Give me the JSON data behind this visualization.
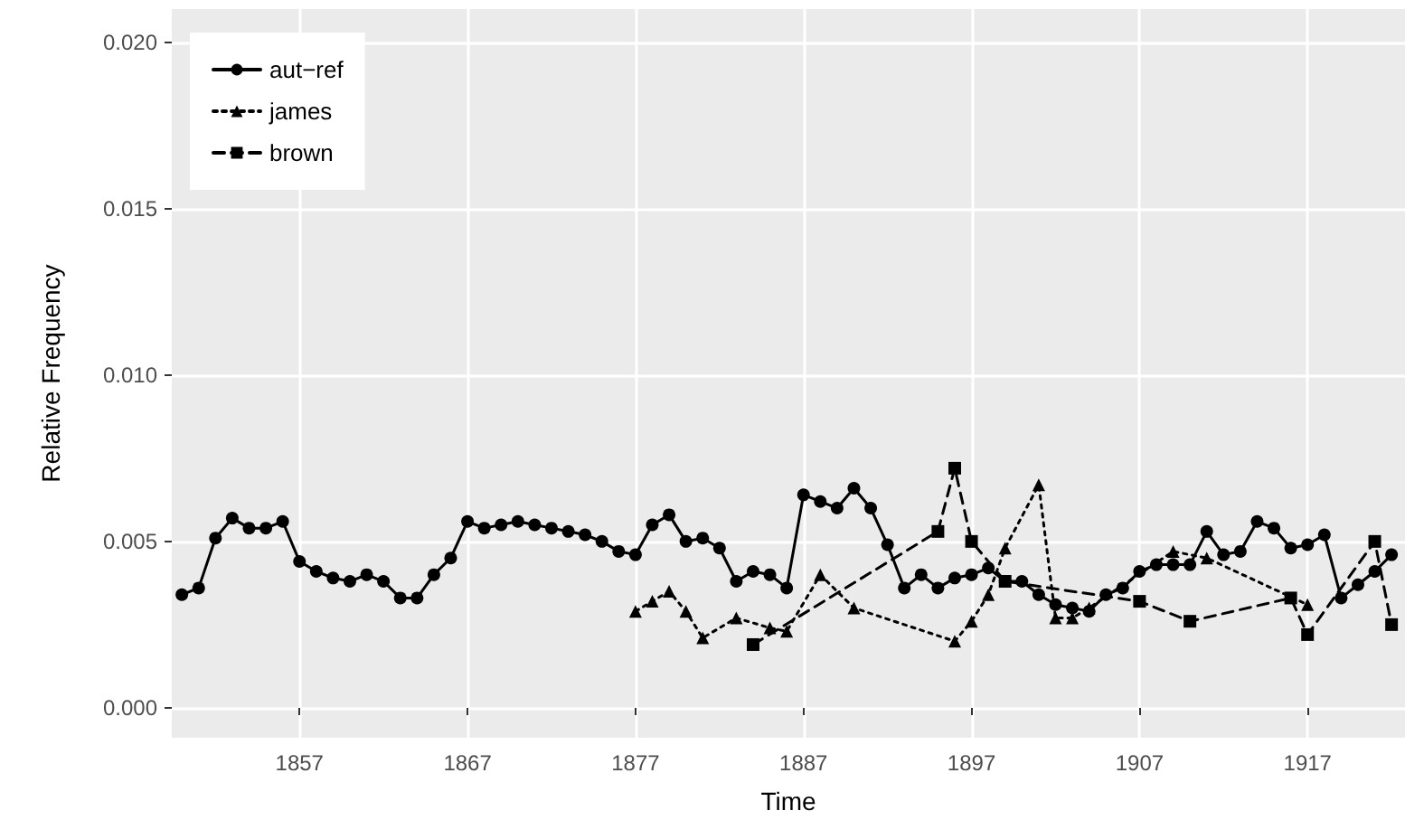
{
  "chart_data": {
    "type": "line",
    "xlabel": "Time",
    "ylabel": "Relative Frequency",
    "xlim": [
      1849.4,
      1922.8
    ],
    "xticks": [
      1857,
      1867,
      1877,
      1887,
      1897,
      1907,
      1917
    ],
    "ylim": [
      -0.0009,
      0.021
    ],
    "yticks": [
      {
        "value": 0,
        "label": "0.000"
      },
      {
        "value": 0.005,
        "label": "0.005"
      },
      {
        "value": 0.01,
        "label": "0.010"
      },
      {
        "value": 0.015,
        "label": "0.015"
      },
      {
        "value": 0.02,
        "label": "0.020"
      }
    ],
    "grid": true,
    "legend": "top left",
    "series": [
      {
        "name": "aut−ref",
        "color": "#000000",
        "marker": "circle",
        "line_style": "solid",
        "x": [
          1850,
          1851,
          1852,
          1853,
          1854,
          1855,
          1856,
          1857,
          1858,
          1859,
          1860,
          1861,
          1862,
          1863,
          1864,
          1865,
          1866,
          1867,
          1868,
          1869,
          1870,
          1871,
          1872,
          1873,
          1874,
          1875,
          1876,
          1877,
          1878,
          1879,
          1880,
          1881,
          1882,
          1883,
          1884,
          1885,
          1886,
          1887,
          1888,
          1889,
          1890,
          1891,
          1892,
          1893,
          1894,
          1895,
          1896,
          1897,
          1898,
          1899,
          1900,
          1901,
          1902,
          1903,
          1904,
          1905,
          1906,
          1907,
          1908,
          1909,
          1910,
          1911,
          1912,
          1913,
          1914,
          1915,
          1916,
          1917,
          1918,
          1919,
          1920,
          1921,
          1922
        ],
        "values": [
          0.0034,
          0.0036,
          0.0051,
          0.0057,
          0.0054,
          0.0054,
          0.0056,
          0.0044,
          0.0041,
          0.0039,
          0.0038,
          0.004,
          0.0038,
          0.0033,
          0.0033,
          0.004,
          0.0045,
          0.0056,
          0.0054,
          0.0055,
          0.0056,
          0.0055,
          0.0054,
          0.0053,
          0.0052,
          0.005,
          0.0047,
          0.0046,
          0.0055,
          0.0058,
          0.005,
          0.0051,
          0.0048,
          0.0038,
          0.0041,
          0.004,
          0.0036,
          0.0064,
          0.0062,
          0.006,
          0.0066,
          0.006,
          0.0049,
          0.0036,
          0.004,
          0.0036,
          0.0039,
          0.004,
          0.0042,
          0.0038,
          0.0038,
          0.0034,
          0.0031,
          0.003,
          0.0029,
          0.0034,
          0.0036,
          0.0041,
          0.0043,
          0.0043,
          0.0043,
          0.0053,
          0.0046,
          0.0047,
          0.0056,
          0.0054,
          0.0048,
          0.0049,
          0.0052,
          0.0033,
          0.0037,
          0.0041,
          0.0046
        ]
      },
      {
        "name": "james",
        "color": "#000000",
        "marker": "triangle",
        "line_style": "dotted",
        "x": [
          1877,
          1878,
          1879,
          1880,
          1881,
          1883,
          1885,
          1886,
          1888,
          1890,
          1896,
          1897,
          1898,
          1899,
          1901,
          1902,
          1903,
          1904,
          1909,
          1911,
          1917
        ],
        "values": [
          0.0029,
          0.0032,
          0.0035,
          0.0029,
          0.0021,
          0.0027,
          0.0024,
          0.0023,
          0.004,
          0.003,
          0.002,
          0.0026,
          0.0034,
          0.0048,
          0.0067,
          0.0027,
          0.0027,
          0.003,
          0.0047,
          0.0045,
          0.0031
        ]
      },
      {
        "name": "brown",
        "color": "#000000",
        "marker": "square",
        "line_style": "dashed",
        "x": [
          1884,
          1895,
          1896,
          1897,
          1899,
          1907,
          1910,
          1916,
          1917,
          1921,
          1922
        ],
        "values": [
          0.0019,
          0.0053,
          0.0072,
          0.005,
          0.0038,
          0.0032,
          0.0026,
          0.0033,
          0.0022,
          0.005,
          0.0025
        ]
      }
    ]
  }
}
